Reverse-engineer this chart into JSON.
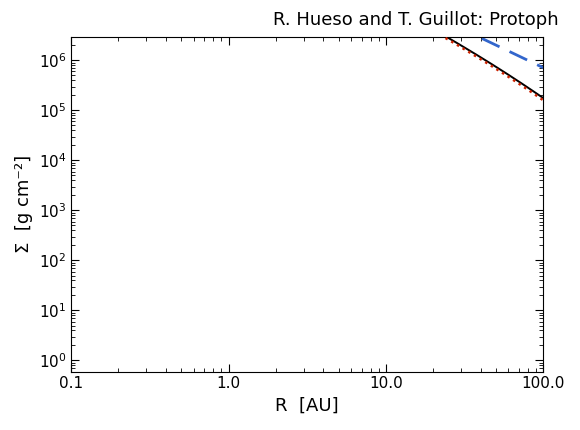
{
  "title": "R. Hueso and T. Guillot: Protoph",
  "xlabel": "R  [AU]",
  "ylabel": "Σ  [g cm⁻²]",
  "xlim": [
    0.1,
    100.0
  ],
  "ylim": [
    0.6,
    3000000.0
  ],
  "background_color": "#ffffff",
  "line_black": {
    "color": "#000000",
    "style": "solid",
    "lw": 1.4,
    "Sigma0": 1800000.0,
    "Rc": 53.0,
    "gamma": 1.5
  },
  "line_red": {
    "color": "#cc2200",
    "style": "dotted",
    "lw": 1.8,
    "Sigma0": 1850000.0,
    "Rc": 50.0,
    "gamma": 1.5
  },
  "line_blue": {
    "color": "#3366cc",
    "style": "dashed",
    "lw": 2.0,
    "A": 1850000.0,
    "Rc": 53.0,
    "gamma": 1.5
  },
  "title_fontsize": 13,
  "label_fontsize": 13,
  "tick_fontsize": 11,
  "fig_width": 5.8,
  "fig_height": 4.3
}
